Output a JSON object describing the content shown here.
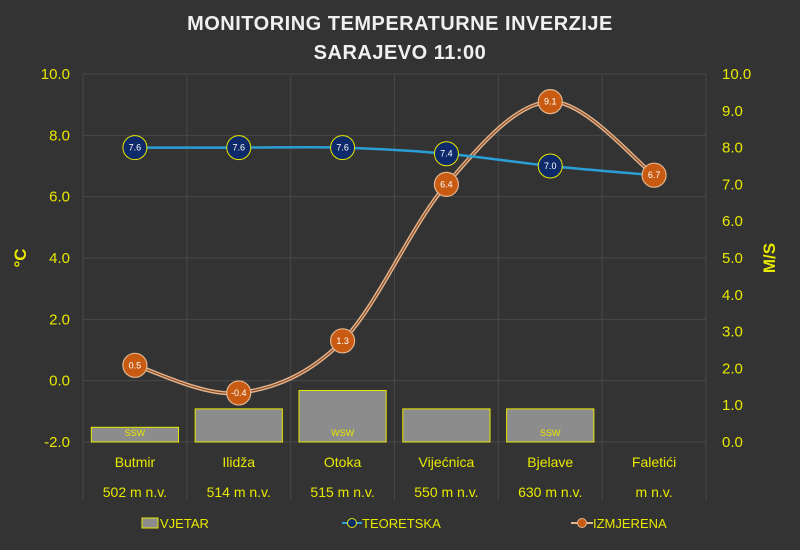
{
  "chart_data": {
    "type": "line",
    "title": "MONITORING TEMPERATURNE INVERZIJE",
    "subtitle": "SARAJEVO 11:00",
    "ylabel_left": "°C",
    "ylabel_right": "M/S",
    "ylim_left": [
      -2.0,
      10.0
    ],
    "ylim_right": [
      0.0,
      10.0
    ],
    "left_ticks": [
      "-2.0",
      "0.0",
      "2.0",
      "4.0",
      "6.0",
      "8.0",
      "10.0"
    ],
    "right_ticks": [
      "0.0",
      "1.0",
      "2.0",
      "3.0",
      "4.0",
      "5.0",
      "6.0",
      "7.0",
      "8.0",
      "9.0",
      "10.0"
    ],
    "categories": [
      "Butmir",
      "Ilidža",
      "Otoka",
      "Vijećnica",
      "Bjelave",
      "Faletići"
    ],
    "altitudes": [
      "502 m n.v.",
      "514 m n.v.",
      "515 m n.v.",
      "550 m n.v.",
      "630 m n.v.",
      "m n.v."
    ],
    "series": [
      {
        "name": "VJETAR",
        "type": "bar",
        "axis": "right",
        "values": [
          0.4,
          0.9,
          1.4,
          0.9,
          0.9,
          null
        ],
        "labels": [
          "SSW",
          "",
          "WSW",
          "",
          "SSW",
          ""
        ]
      },
      {
        "name": "TEORETSKA",
        "type": "line",
        "axis": "left",
        "values": [
          7.6,
          7.6,
          7.6,
          7.4,
          7.0,
          6.7
        ],
        "labels": [
          "7.6",
          "7.6",
          "7.6",
          "7.4",
          "7.0",
          ""
        ]
      },
      {
        "name": "IZMJERENA",
        "type": "line",
        "axis": "left",
        "values": [
          0.5,
          -0.4,
          1.3,
          6.4,
          9.1,
          6.7
        ],
        "labels": [
          "0.5",
          "-0.4",
          "1.3",
          "6.4",
          "9.1",
          "6.7"
        ]
      }
    ],
    "legend": [
      "VJETAR",
      "TEORETSKA",
      "IZMJERENA"
    ],
    "legend_position": "bottom"
  },
  "colors": {
    "background": "#333333",
    "text": "#e8e800",
    "title": "#f0f0f0",
    "bar_fill": "#8c8c8c",
    "bar_stroke": "#e8e800",
    "teoretska_line": "#2a9fd6",
    "teoretska_marker": "#0f2a6b",
    "izmjerena_line": "#e2b58e",
    "izmjerena_marker": "#c85a12"
  }
}
